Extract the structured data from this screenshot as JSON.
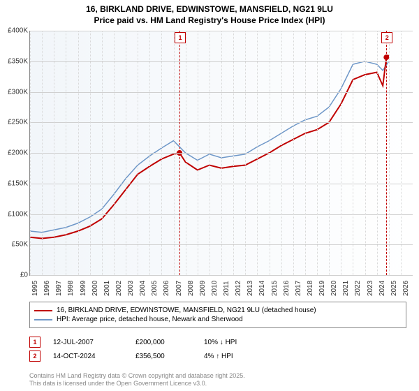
{
  "title_line1": "16, BIRKLAND DRIVE, EDWINSTOWE, MANSFIELD, NG21 9LU",
  "title_line2": "Price paid vs. HM Land Registry's House Price Index (HPI)",
  "chart": {
    "type": "line",
    "x_domain": [
      1995,
      2027
    ],
    "y_domain": [
      0,
      400000
    ],
    "y_ticks": [
      0,
      50000,
      100000,
      150000,
      200000,
      250000,
      300000,
      350000,
      400000
    ],
    "y_tick_labels": [
      "£0",
      "£50K",
      "£100K",
      "£150K",
      "£200K",
      "£250K",
      "£300K",
      "£350K",
      "£400K"
    ],
    "x_ticks": [
      1995,
      1996,
      1997,
      1998,
      1999,
      2000,
      2001,
      2002,
      2003,
      2004,
      2005,
      2006,
      2007,
      2008,
      2009,
      2010,
      2011,
      2012,
      2013,
      2014,
      2015,
      2016,
      2017,
      2018,
      2019,
      2020,
      2021,
      2022,
      2023,
      2024,
      2025,
      2026
    ],
    "background_gradient": [
      "#f2f6fa",
      "#ffffff"
    ],
    "grid_color": "#d0d0d0",
    "series": [
      {
        "name": "price_paid",
        "label": "16, BIRKLAND DRIVE, EDWINSTOWE, MANSFIELD, NG21 9LU (detached house)",
        "color": "#c00000",
        "width": 2,
        "points": [
          [
            1995,
            62000
          ],
          [
            1996,
            60000
          ],
          [
            1997,
            62000
          ],
          [
            1998,
            66000
          ],
          [
            1999,
            72000
          ],
          [
            2000,
            80000
          ],
          [
            2001,
            92000
          ],
          [
            2002,
            115000
          ],
          [
            2003,
            140000
          ],
          [
            2004,
            165000
          ],
          [
            2005,
            178000
          ],
          [
            2006,
            190000
          ],
          [
            2007,
            198000
          ],
          [
            2007.5,
            200000
          ],
          [
            2008,
            185000
          ],
          [
            2009,
            172000
          ],
          [
            2010,
            180000
          ],
          [
            2011,
            175000
          ],
          [
            2012,
            178000
          ],
          [
            2013,
            180000
          ],
          [
            2014,
            190000
          ],
          [
            2015,
            200000
          ],
          [
            2016,
            212000
          ],
          [
            2017,
            222000
          ],
          [
            2018,
            232000
          ],
          [
            2019,
            238000
          ],
          [
            2020,
            250000
          ],
          [
            2021,
            280000
          ],
          [
            2022,
            320000
          ],
          [
            2023,
            328000
          ],
          [
            2024,
            332000
          ],
          [
            2024.5,
            310000
          ],
          [
            2024.8,
            356500
          ],
          [
            2025,
            360000
          ]
        ]
      },
      {
        "name": "hpi",
        "label": "HPI: Average price, detached house, Newark and Sherwood",
        "color": "#6e97c8",
        "width": 1.5,
        "points": [
          [
            1995,
            72000
          ],
          [
            1996,
            70000
          ],
          [
            1997,
            74000
          ],
          [
            1998,
            78000
          ],
          [
            1999,
            85000
          ],
          [
            2000,
            95000
          ],
          [
            2001,
            108000
          ],
          [
            2002,
            132000
          ],
          [
            2003,
            158000
          ],
          [
            2004,
            180000
          ],
          [
            2005,
            195000
          ],
          [
            2006,
            208000
          ],
          [
            2007,
            220000
          ],
          [
            2008,
            200000
          ],
          [
            2009,
            188000
          ],
          [
            2010,
            198000
          ],
          [
            2011,
            192000
          ],
          [
            2012,
            195000
          ],
          [
            2013,
            198000
          ],
          [
            2014,
            210000
          ],
          [
            2015,
            220000
          ],
          [
            2016,
            232000
          ],
          [
            2017,
            244000
          ],
          [
            2018,
            254000
          ],
          [
            2019,
            260000
          ],
          [
            2020,
            275000
          ],
          [
            2021,
            305000
          ],
          [
            2022,
            345000
          ],
          [
            2023,
            350000
          ],
          [
            2024,
            345000
          ],
          [
            2024.5,
            335000
          ],
          [
            2025,
            350000
          ]
        ]
      }
    ],
    "markers": [
      {
        "id": "1",
        "x": 2007.5,
        "color": "#c00000"
      },
      {
        "id": "2",
        "x": 2024.8,
        "color": "#c00000"
      }
    ]
  },
  "legend": {
    "items": [
      {
        "color": "#c00000",
        "label": "16, BIRKLAND DRIVE, EDWINSTOWE, MANSFIELD, NG21 9LU (detached house)"
      },
      {
        "color": "#6e97c8",
        "label": "HPI: Average price, detached house, Newark and Sherwood"
      }
    ]
  },
  "transactions": [
    {
      "id": "1",
      "date": "12-JUL-2007",
      "price": "£200,000",
      "change": "10% ↓ HPI"
    },
    {
      "id": "2",
      "date": "14-OCT-2024",
      "price": "£356,500",
      "change": "4% ↑ HPI"
    }
  ],
  "footer_line1": "Contains HM Land Registry data © Crown copyright and database right 2025.",
  "footer_line2": "This data is licensed under the Open Government Licence v3.0."
}
